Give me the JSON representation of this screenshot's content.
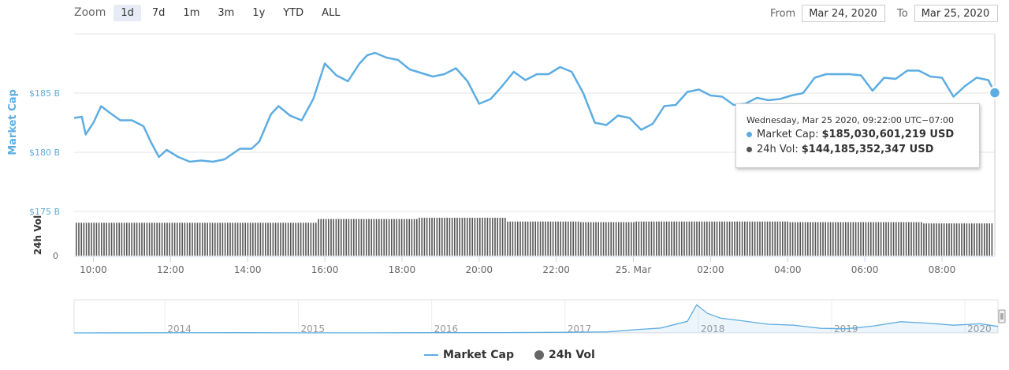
{
  "zoom": {
    "label": "Zoom",
    "buttons": [
      {
        "label": "1d",
        "active": true
      },
      {
        "label": "7d",
        "active": false
      },
      {
        "label": "1m",
        "active": false
      },
      {
        "label": "3m",
        "active": false
      },
      {
        "label": "1y",
        "active": false
      },
      {
        "label": "YTD",
        "active": false
      },
      {
        "label": "ALL",
        "active": false
      }
    ]
  },
  "range": {
    "from_label": "From",
    "from_value": "Mar 24, 2020",
    "to_label": "To",
    "to_value": "Mar 25, 2020"
  },
  "tooltip": {
    "header": "Wednesday, Mar 25 2020, 09:22:00 UTC−07:00",
    "market_cap_label": "Market Cap:",
    "market_cap_value": "$185,030,601,219 USD",
    "vol_label": "24h Vol:",
    "vol_value": "$144,185,352,347 USD"
  },
  "colors": {
    "market_cap": "#5dade2",
    "volume": "#555555",
    "navigator": "#5dade2"
  },
  "legend": {
    "market_cap": "Market Cap",
    "vol": "24h Vol"
  },
  "chart_data": {
    "type": "line",
    "ylabel": "Market Cap",
    "ylabel_volume": "24h Vol",
    "x_ticks": [
      "10:00",
      "12:00",
      "14:00",
      "16:00",
      "18:00",
      "20:00",
      "22:00",
      "25. Mar",
      "02:00",
      "04:00",
      "06:00",
      "08:00"
    ],
    "x_tick_hours": [
      10,
      12,
      14,
      16,
      18,
      20,
      22,
      24,
      26,
      28,
      30,
      32
    ],
    "x_range_hours": [
      9.5,
      33.37
    ],
    "y_ticks": [
      "$175 B",
      "$180 B",
      "$185 B"
    ],
    "y_tick_values": [
      175,
      180,
      185
    ],
    "y_range": [
      175,
      190
    ],
    "volume_ticks": [
      "0"
    ],
    "series": [
      {
        "name": "Market Cap",
        "unit": "B USD",
        "points": [
          [
            9.5,
            182.9
          ],
          [
            9.7,
            183.0
          ],
          [
            9.8,
            181.5
          ],
          [
            10.0,
            182.5
          ],
          [
            10.2,
            183.9
          ],
          [
            10.4,
            183.4
          ],
          [
            10.7,
            182.7
          ],
          [
            11.0,
            182.7
          ],
          [
            11.3,
            182.2
          ],
          [
            11.5,
            180.8
          ],
          [
            11.7,
            179.6
          ],
          [
            11.9,
            180.2
          ],
          [
            12.2,
            179.6
          ],
          [
            12.5,
            179.2
          ],
          [
            12.8,
            179.3
          ],
          [
            13.1,
            179.2
          ],
          [
            13.4,
            179.4
          ],
          [
            13.8,
            180.3
          ],
          [
            14.1,
            180.3
          ],
          [
            14.3,
            180.9
          ],
          [
            14.6,
            183.2
          ],
          [
            14.8,
            183.9
          ],
          [
            15.1,
            183.1
          ],
          [
            15.4,
            182.7
          ],
          [
            15.7,
            184.5
          ],
          [
            16.0,
            187.5
          ],
          [
            16.3,
            186.5
          ],
          [
            16.6,
            186.0
          ],
          [
            16.9,
            187.5
          ],
          [
            17.1,
            188.2
          ],
          [
            17.3,
            188.4
          ],
          [
            17.6,
            188.0
          ],
          [
            17.9,
            187.8
          ],
          [
            18.2,
            187.0
          ],
          [
            18.5,
            186.7
          ],
          [
            18.8,
            186.4
          ],
          [
            19.1,
            186.6
          ],
          [
            19.4,
            187.1
          ],
          [
            19.7,
            186.0
          ],
          [
            20.0,
            184.1
          ],
          [
            20.3,
            184.5
          ],
          [
            20.6,
            185.6
          ],
          [
            20.9,
            186.8
          ],
          [
            21.2,
            186.1
          ],
          [
            21.5,
            186.6
          ],
          [
            21.8,
            186.6
          ],
          [
            22.1,
            187.2
          ],
          [
            22.4,
            186.8
          ],
          [
            22.7,
            185.0
          ],
          [
            23.0,
            182.5
          ],
          [
            23.3,
            182.3
          ],
          [
            23.6,
            183.1
          ],
          [
            23.9,
            182.9
          ],
          [
            24.2,
            181.9
          ],
          [
            24.5,
            182.4
          ],
          [
            24.8,
            183.9
          ],
          [
            25.1,
            184.0
          ],
          [
            25.4,
            185.1
          ],
          [
            25.7,
            185.3
          ],
          [
            26.0,
            184.8
          ],
          [
            26.3,
            184.7
          ],
          [
            26.6,
            184.0
          ],
          [
            26.9,
            184.1
          ],
          [
            27.2,
            184.6
          ],
          [
            27.5,
            184.4
          ],
          [
            27.8,
            184.5
          ],
          [
            28.1,
            184.8
          ],
          [
            28.4,
            185.0
          ],
          [
            28.7,
            186.3
          ],
          [
            29.0,
            186.6
          ],
          [
            29.3,
            186.6
          ],
          [
            29.6,
            186.6
          ],
          [
            29.9,
            186.5
          ],
          [
            30.2,
            185.2
          ],
          [
            30.5,
            186.3
          ],
          [
            30.8,
            186.2
          ],
          [
            31.1,
            186.9
          ],
          [
            31.4,
            186.9
          ],
          [
            31.7,
            186.4
          ],
          [
            32.0,
            186.3
          ],
          [
            32.3,
            184.7
          ],
          [
            32.6,
            185.6
          ],
          [
            32.9,
            186.3
          ],
          [
            33.2,
            186.1
          ],
          [
            33.37,
            185.03
          ]
        ]
      },
      {
        "name": "24h Vol",
        "unit": "B USD",
        "segments": [
          [
            9.5,
            142
          ],
          [
            15.8,
            148
          ],
          [
            18.4,
            150
          ],
          [
            20.7,
            144
          ],
          [
            22.6,
            143
          ],
          [
            24.0,
            144
          ],
          [
            28.0,
            143
          ],
          [
            31.5,
            141
          ],
          [
            33.37,
            144.19
          ]
        ]
      }
    ],
    "volume_range": [
      0,
      220
    ],
    "navigator": {
      "x_labels": [
        "2014",
        "2015",
        "2016",
        "2017",
        "2018",
        "2019",
        "2020"
      ],
      "x_label_years": [
        2014,
        2015,
        2016,
        2017,
        2018,
        2019,
        2020
      ],
      "x_range_years": [
        2013.3,
        2020.23
      ],
      "y_range_B": [
        0,
        900
      ],
      "points": [
        [
          2013.3,
          1
        ],
        [
          2014.0,
          4
        ],
        [
          2014.5,
          6
        ],
        [
          2015.0,
          3
        ],
        [
          2015.5,
          3
        ],
        [
          2016.0,
          6
        ],
        [
          2016.5,
          10
        ],
        [
          2017.0,
          17
        ],
        [
          2017.3,
          30
        ],
        [
          2017.5,
          90
        ],
        [
          2017.7,
          140
        ],
        [
          2017.9,
          330
        ],
        [
          2017.97,
          800
        ],
        [
          2018.05,
          560
        ],
        [
          2018.15,
          420
        ],
        [
          2018.3,
          350
        ],
        [
          2018.5,
          250
        ],
        [
          2018.7,
          220
        ],
        [
          2018.9,
          130
        ],
        [
          2019.1,
          120
        ],
        [
          2019.3,
          200
        ],
        [
          2019.5,
          320
        ],
        [
          2019.7,
          280
        ],
        [
          2019.9,
          220
        ],
        [
          2020.1,
          260
        ],
        [
          2020.23,
          185
        ]
      ]
    }
  }
}
